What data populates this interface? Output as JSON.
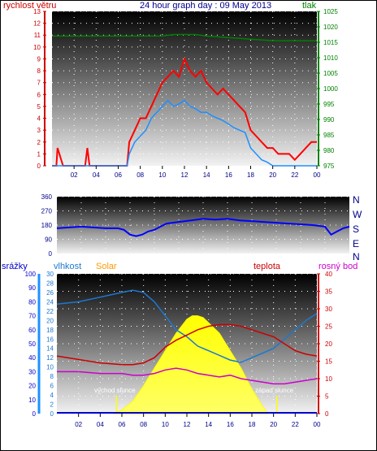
{
  "title": "24 hour graph day : 09 May 2013",
  "colors": {
    "wind": "#ff0000",
    "gust_dark": "#1e90ff",
    "pressure": "#008000",
    "direction": "#0000ff",
    "humidity": "#1e78d0",
    "solar": "#ffff00",
    "temperature": "#cc0000",
    "dewpoint": "#cc00cc",
    "rain": "#0000cc"
  },
  "labels": {
    "wind": "rychlost větru",
    "pressure": "tlak",
    "rain": "srážky",
    "humidity": "vlhkost",
    "solar": "Solar",
    "temperature": "teplota",
    "dewpoint": "rosný bod",
    "sunrise": "východ slunce",
    "sunset": "západ slunce"
  },
  "compass": [
    "N",
    "W",
    "S",
    "E",
    "N"
  ],
  "chart_data": [
    {
      "type": "line",
      "name": "wind",
      "xlabel": "",
      "x_ticks": [
        "02",
        "04",
        "06",
        "08",
        "10",
        "12",
        "14",
        "16",
        "18",
        "20",
        "22",
        "00"
      ],
      "y_left_ticks": [
        "0",
        "1",
        "2",
        "3",
        "4",
        "5",
        "6",
        "7",
        "8",
        "9",
        "10",
        "11",
        "12",
        "13"
      ],
      "y_right_ticks": [
        "975",
        "980",
        "985",
        "990",
        "995",
        "1000",
        "1005",
        "1010",
        "1015",
        "1020",
        "1025"
      ],
      "ylim": [
        0,
        13
      ],
      "y2lim": [
        975,
        1025
      ],
      "series": [
        {
          "name": "rychlost větru",
          "x": [
            0,
            0.4,
            0.5,
            1,
            2,
            3,
            3.2,
            3.4,
            4,
            5,
            6,
            6.8,
            7,
            7.5,
            8,
            8.5,
            9,
            9.5,
            10,
            10.5,
            11,
            11.5,
            12,
            12.5,
            13,
            13.5,
            14,
            14.5,
            15,
            15.5,
            16,
            16.5,
            17,
            17.5,
            18,
            18.5,
            19,
            19.5,
            20,
            20.5,
            21,
            21.5,
            22,
            22.5,
            23,
            23.5,
            24
          ],
          "values": [
            0,
            0,
            1.5,
            0,
            0,
            0,
            1.5,
            0,
            0,
            0,
            0,
            0,
            2,
            3,
            4,
            4,
            5,
            6,
            7,
            7.5,
            8,
            7.5,
            9,
            8,
            7.5,
            8,
            7,
            6.5,
            6,
            6.5,
            6,
            5.5,
            5,
            4.5,
            3,
            2.5,
            2,
            1.5,
            1.5,
            1,
            1,
            1,
            0.5,
            1,
            1.5,
            2,
            2
          ]
        },
        {
          "name": "gust",
          "x": [
            0,
            6.8,
            7,
            7.5,
            8,
            8.5,
            9,
            9.5,
            10,
            10.5,
            11,
            11.5,
            12,
            12.5,
            13,
            13.5,
            14,
            14.5,
            15,
            15.5,
            16,
            16.5,
            17,
            17.5,
            18,
            18.5,
            19,
            19.5,
            20,
            21,
            22,
            23,
            24
          ],
          "values": [
            0,
            0,
            1,
            2,
            2.5,
            3,
            4,
            4.5,
            5,
            5.5,
            5,
            5.2,
            5.5,
            5,
            4.8,
            4.5,
            4.5,
            4.2,
            4,
            3.8,
            3.5,
            3.2,
            3,
            2.8,
            1.5,
            1,
            0.5,
            0.3,
            0,
            0,
            0,
            0,
            0
          ]
        },
        {
          "name": "tlak",
          "x": [
            0,
            2,
            4,
            6,
            8,
            10,
            11,
            12,
            13,
            14,
            16,
            18,
            20,
            22,
            24
          ],
          "values": [
            1017,
            1017,
            1017,
            1017,
            1017,
            1017,
            1017.5,
            1017.5,
            1017.5,
            1017,
            1016.5,
            1016,
            1015.5,
            1015.5,
            1015.5
          ]
        }
      ]
    },
    {
      "type": "line",
      "name": "wind direction",
      "y_ticks": [
        "0",
        "90",
        "180",
        "270",
        "360"
      ],
      "ylim": [
        0,
        360
      ],
      "series": [
        {
          "name": "direction",
          "x": [
            0,
            1,
            2,
            3,
            4,
            5,
            5.5,
            6,
            6.5,
            7,
            7.5,
            8,
            8.5,
            9,
            10,
            11,
            12,
            13,
            14,
            15,
            16,
            17,
            18,
            19,
            20,
            21,
            22,
            22.5,
            23,
            23.5,
            24
          ],
          "values": [
            160,
            165,
            170,
            165,
            160,
            160,
            150,
            120,
            110,
            120,
            140,
            150,
            170,
            190,
            200,
            210,
            220,
            215,
            220,
            210,
            205,
            200,
            195,
            190,
            185,
            180,
            170,
            120,
            140,
            160,
            170
          ]
        }
      ]
    },
    {
      "type": "line",
      "name": "temperature humidity solar",
      "x_ticks": [
        "02",
        "04",
        "06",
        "08",
        "10",
        "12",
        "14",
        "16",
        "18",
        "20",
        "22",
        "00"
      ],
      "y_rain_ticks": [
        "0",
        "10",
        "20",
        "30",
        "40",
        "50",
        "60",
        "70",
        "80",
        "90",
        "100"
      ],
      "y_hum_ticks": [
        "0",
        "2",
        "4",
        "6",
        "8",
        "10",
        "12",
        "14",
        "16",
        "18",
        "20",
        "22",
        "24",
        "26",
        "28",
        "30"
      ],
      "y_temp_ticks": [
        "0",
        "5",
        "10",
        "15",
        "20",
        "25",
        "30",
        "35",
        "40"
      ],
      "series": [
        {
          "name": "vlhkost",
          "axis": "hum",
          "x": [
            0,
            2,
            4,
            6,
            7,
            8,
            9,
            10,
            11,
            12,
            13,
            14,
            15,
            16,
            17,
            18,
            19,
            20,
            21,
            22,
            23,
            24
          ],
          "values": [
            23.5,
            24,
            25,
            26,
            26.5,
            26,
            24,
            21,
            18,
            16.5,
            14.5,
            13.5,
            12.5,
            11.5,
            11,
            12,
            13,
            14,
            16,
            18,
            20,
            21.5
          ]
        },
        {
          "name": "teplota",
          "axis": "temp",
          "x": [
            0,
            2,
            4,
            6,
            7,
            8,
            9,
            10,
            11,
            12,
            13,
            14,
            15,
            16,
            17,
            18,
            19,
            20,
            21,
            22,
            23,
            24
          ],
          "values": [
            16.5,
            15.5,
            14.5,
            14,
            14,
            14.5,
            16,
            19,
            21,
            22.5,
            24,
            25,
            25.5,
            25.5,
            25,
            24,
            23,
            22,
            20,
            18,
            17,
            16.5
          ]
        },
        {
          "name": "rosný bod",
          "axis": "temp",
          "x": [
            0,
            2,
            4,
            6,
            7,
            8,
            9,
            10,
            11,
            12,
            13,
            14,
            15,
            16,
            17,
            18,
            19,
            20,
            21,
            22,
            23,
            24
          ],
          "values": [
            12,
            12,
            11.5,
            11.5,
            11,
            11,
            11.5,
            12.5,
            13,
            12.5,
            11.5,
            11,
            10.5,
            11,
            10,
            9.5,
            9,
            8.5,
            8.5,
            9,
            9.5,
            10
          ]
        },
        {
          "name": "Solar",
          "axis": "temp",
          "x": [
            5.2,
            6,
            7,
            8,
            9,
            10,
            11,
            12,
            12.5,
            13,
            13.5,
            14,
            15,
            16,
            17,
            18,
            19,
            19.5
          ],
          "values": [
            0,
            1,
            3.5,
            8,
            13,
            18,
            23,
            27,
            28,
            28,
            27.5,
            26,
            23,
            18,
            13,
            7,
            2,
            0
          ]
        },
        {
          "name": "srážky",
          "axis": "rain",
          "x": [
            0,
            24
          ],
          "values": [
            0,
            0
          ]
        }
      ]
    }
  ]
}
